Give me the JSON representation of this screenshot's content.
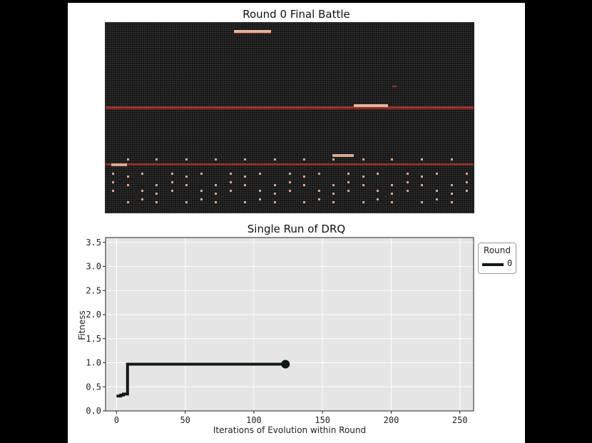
{
  "battle": {
    "title": "Round 0 Final Battle"
  },
  "colors": {
    "background_outer": "#000000",
    "panel": "#ffffff",
    "core_background": "#141414",
    "warrior_trace": "#c23a32",
    "warrior_highlight": "#f6c3a8",
    "plot_background": "#e5e5e5",
    "gridline": "#ffffff",
    "series_line": "#0f1a14"
  },
  "chart_data": {
    "type": "line",
    "title": "Single Run of DRQ",
    "xlabel": "Iterations of Evolution within Round",
    "ylabel": "Fitness",
    "xlim": [
      -8,
      260
    ],
    "ylim": [
      0,
      3.6
    ],
    "xticks": [
      0,
      50,
      100,
      150,
      200,
      250
    ],
    "yticks": [
      0.0,
      0.5,
      1.0,
      1.5,
      2.0,
      2.5,
      3.0,
      3.5
    ],
    "xtick_labels": [
      "0",
      "50",
      "100",
      "150",
      "200",
      "250"
    ],
    "ytick_labels": [
      "0.0",
      "0.5",
      "1.0",
      "1.5",
      "2.0",
      "2.5",
      "3.0",
      "3.5"
    ],
    "grid": true,
    "legend": {
      "title": "Round",
      "placement": "outside-upper-right",
      "entries": [
        "0"
      ]
    },
    "series": [
      {
        "name": "0",
        "x": [
          0,
          3,
          3,
          5,
          5,
          8,
          8,
          123
        ],
        "y": [
          0.31,
          0.31,
          0.33,
          0.33,
          0.35,
          0.35,
          0.97,
          0.97
        ],
        "end_marker": true
      }
    ]
  }
}
